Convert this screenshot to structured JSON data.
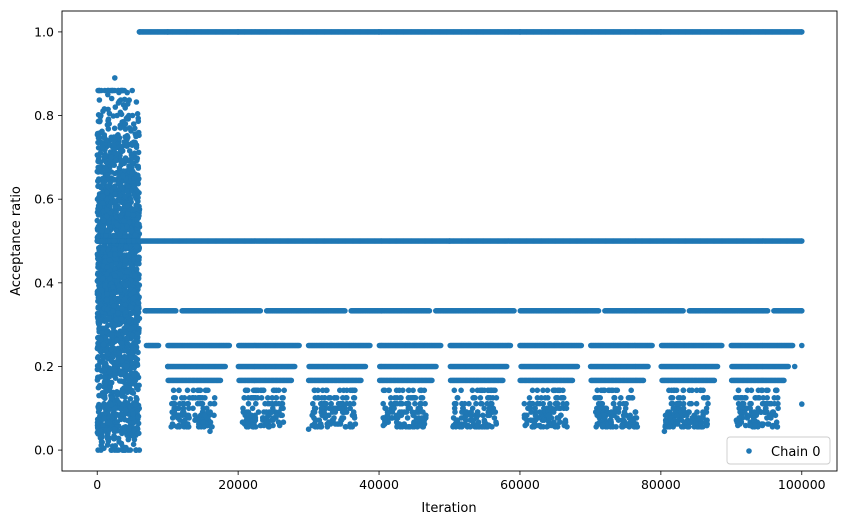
{
  "chart_data": {
    "type": "scatter",
    "xlabel": "Iteration",
    "ylabel": "Acceptance ratio",
    "xlim": [
      -5000,
      105000
    ],
    "ylim": [
      -0.05,
      1.05
    ],
    "x_ticks": [
      0,
      20000,
      40000,
      60000,
      80000,
      100000
    ],
    "x_tick_labels": [
      "0",
      "20000",
      "40000",
      "60000",
      "80000",
      "100000"
    ],
    "y_ticks": [
      0.0,
      0.2,
      0.4,
      0.6,
      0.8,
      1.0
    ],
    "y_tick_labels": [
      "0.0",
      "0.2",
      "0.4",
      "0.6",
      "0.8",
      "1.0"
    ],
    "grid": false,
    "legend_position": "bottom-right",
    "marker_color": "#1f77b4",
    "series": [
      {
        "name": "Chain 0",
        "description_of_structure": {
          "burn_in_x_range": [
            0,
            6000
          ],
          "burn_in_y_range": [
            0.0,
            0.89
          ],
          "steady_state_x_range": [
            6000,
            100000
          ],
          "steady_state_levels": [
            1.0,
            0.5,
            0.333,
            0.25,
            0.2,
            0.167,
            0.143,
            0.125,
            0.111,
            0.1,
            0.083,
            0.077,
            0.071,
            0.067,
            0.0625,
            0.059,
            0.056
          ]
        },
        "points": [
          [
            0,
            0.5
          ],
          [
            500,
            0.8
          ],
          [
            1000,
            0.75
          ],
          [
            1500,
            0.85
          ],
          [
            2000,
            0.7
          ],
          [
            2500,
            0.89
          ],
          [
            3000,
            0.83
          ],
          [
            3500,
            0.86
          ],
          [
            4000,
            0.78
          ],
          [
            4500,
            0.8
          ],
          [
            5000,
            0.8
          ],
          [
            5500,
            0.75
          ],
          [
            200,
            0.1
          ],
          [
            800,
            0.06
          ],
          [
            1500,
            0.03
          ],
          [
            2500,
            0.05
          ],
          [
            3500,
            0.04
          ],
          [
            4500,
            0.05
          ],
          [
            5500,
            0.0
          ],
          [
            6000,
            1.0
          ],
          [
            10000,
            1.0
          ],
          [
            20000,
            1.0
          ],
          [
            40000,
            1.0
          ],
          [
            60000,
            1.0
          ],
          [
            80000,
            1.0
          ],
          [
            100000,
            1.0
          ],
          [
            6000,
            0.5
          ],
          [
            50000,
            0.5
          ],
          [
            100000,
            0.5
          ],
          [
            7000,
            0.333
          ],
          [
            100000,
            0.333
          ],
          [
            7000,
            0.25
          ],
          [
            100000,
            0.25
          ],
          [
            10000,
            0.2
          ],
          [
            99000,
            0.2
          ],
          [
            16000,
            0.045
          ],
          [
            30000,
            0.05
          ],
          [
            55500,
            0.06
          ],
          [
            80500,
            0.045
          ],
          [
            74500,
            0.06
          ],
          [
            100000,
            0.11
          ]
        ]
      }
    ]
  }
}
